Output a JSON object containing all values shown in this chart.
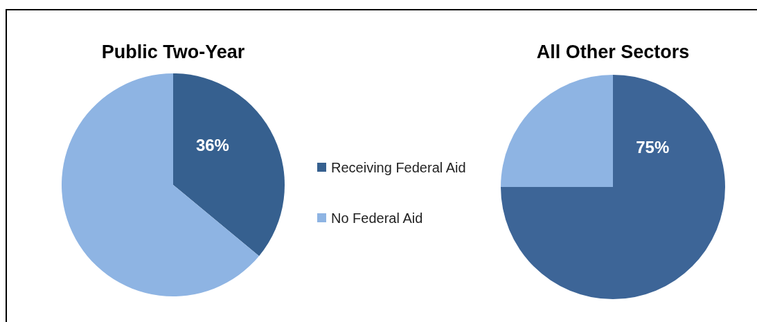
{
  "chart_data": [
    {
      "type": "pie",
      "title": "Public Two-Year",
      "categories": [
        "Receiving Federal Aid",
        "No Federal Aid"
      ],
      "values": [
        36,
        64
      ],
      "colors": [
        "#36608f",
        "#8eb4e3"
      ],
      "value_labels": [
        "36%",
        null
      ],
      "legend": "right"
    },
    {
      "type": "pie",
      "title": "All Other Sectors",
      "categories": [
        null,
        null
      ],
      "values": [
        75,
        25
      ],
      "colors": [
        "#3d6597",
        "#8eb4e3"
      ],
      "value_labels": [
        "75%",
        null
      ]
    }
  ]
}
